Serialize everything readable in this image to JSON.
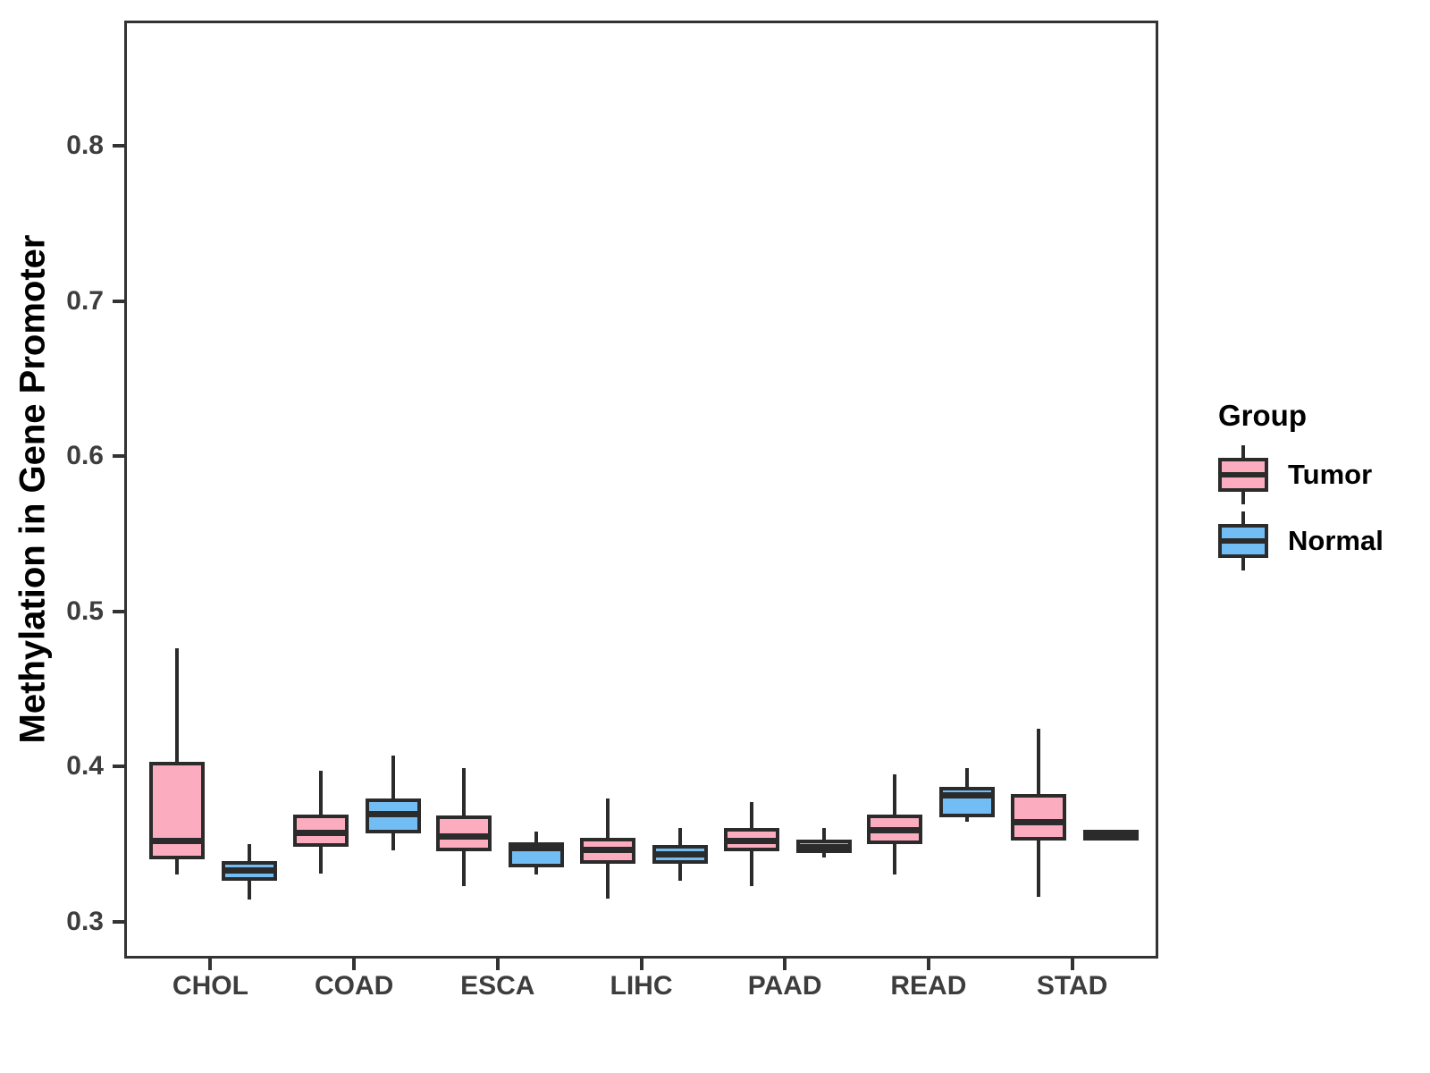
{
  "chart_data": {
    "type": "boxplot",
    "title": "",
    "xlabel": "",
    "ylabel": "Methylation in Gene Promoter",
    "ylim": [
      0.2764,
      0.8806
    ],
    "yticks": [
      0.3,
      0.4,
      0.5,
      0.6,
      0.7,
      0.8
    ],
    "ytick_format_decimals": 1,
    "grid": "off",
    "categories": [
      "CHOL",
      "COAD",
      "ESCA",
      "LIHC",
      "PAAD",
      "READ",
      "STAD"
    ],
    "stroke_color": "#2B2B2B",
    "axis_color": "#333333",
    "legend": {
      "title": "Group",
      "position": "right",
      "entries": [
        {
          "label": "Tumor",
          "color": "#FBADBF"
        },
        {
          "label": "Normal",
          "color": "#72BDF4"
        }
      ]
    },
    "series": [
      {
        "name": "Tumor",
        "color": "#FBADBF",
        "boxes": [
          {
            "category": "CHOL",
            "whisker_low": 0.332,
            "q1": 0.342,
            "median": 0.354,
            "q3": 0.405,
            "whisker_high": 0.478
          },
          {
            "category": "COAD",
            "whisker_low": 0.333,
            "q1": 0.35,
            "median": 0.359,
            "q3": 0.371,
            "whisker_high": 0.399
          },
          {
            "category": "ESCA",
            "whisker_low": 0.325,
            "q1": 0.347,
            "median": 0.357,
            "q3": 0.37,
            "whisker_high": 0.401
          },
          {
            "category": "LIHC",
            "whisker_low": 0.317,
            "q1": 0.339,
            "median": 0.348,
            "q3": 0.356,
            "whisker_high": 0.381
          },
          {
            "category": "PAAD",
            "whisker_low": 0.325,
            "q1": 0.347,
            "median": 0.354,
            "q3": 0.362,
            "whisker_high": 0.379
          },
          {
            "category": "READ",
            "whisker_low": 0.332,
            "q1": 0.352,
            "median": 0.361,
            "q3": 0.371,
            "whisker_high": 0.397
          },
          {
            "category": "STAD",
            "whisker_low": 0.318,
            "q1": 0.354,
            "median": 0.366,
            "q3": 0.384,
            "whisker_high": 0.426
          }
        ]
      },
      {
        "name": "Normal",
        "color": "#72BDF4",
        "boxes": [
          {
            "category": "CHOL",
            "whisker_low": 0.316,
            "q1": 0.328,
            "median": 0.335,
            "q3": 0.341,
            "whisker_high": 0.352
          },
          {
            "category": "COAD",
            "whisker_low": 0.348,
            "q1": 0.359,
            "median": 0.371,
            "q3": 0.381,
            "whisker_high": 0.409
          },
          {
            "category": "ESCA",
            "whisker_low": 0.332,
            "q1": 0.337,
            "median": 0.349,
            "q3": 0.353,
            "whisker_high": 0.36
          },
          {
            "category": "LIHC",
            "whisker_low": 0.328,
            "q1": 0.339,
            "median": 0.345,
            "q3": 0.351,
            "whisker_high": 0.362
          },
          {
            "category": "PAAD",
            "whisker_low": 0.343,
            "q1": 0.346,
            "median": 0.35,
            "q3": 0.355,
            "whisker_high": 0.362
          },
          {
            "category": "READ",
            "whisker_low": 0.366,
            "q1": 0.369,
            "median": 0.383,
            "q3": 0.389,
            "whisker_high": 0.401
          },
          {
            "category": "STAD",
            "whisker_low": 0.359,
            "q1": 0.359,
            "median": 0.359,
            "q3": 0.359,
            "whisker_high": 0.359
          }
        ]
      }
    ]
  }
}
